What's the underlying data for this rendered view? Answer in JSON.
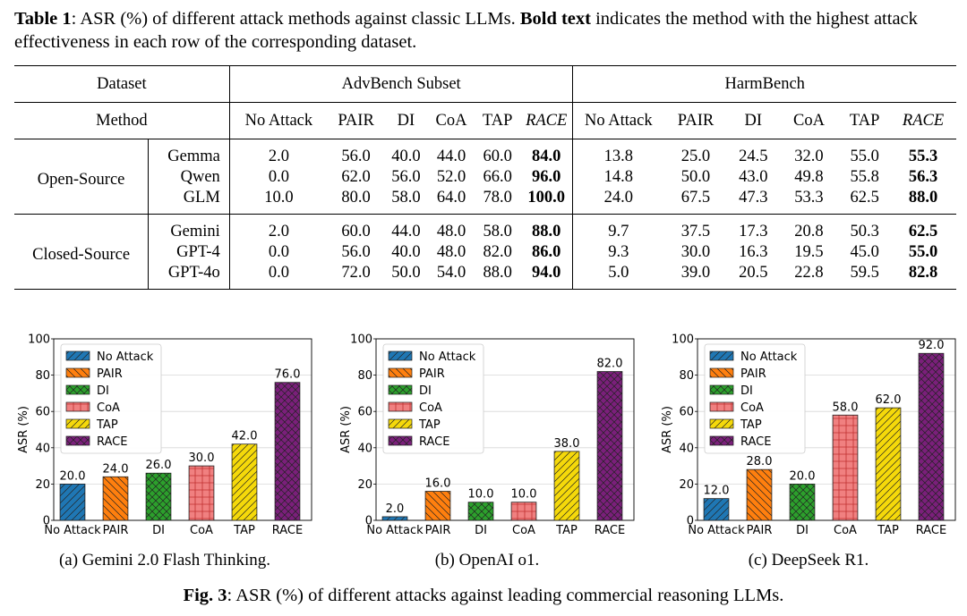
{
  "table": {
    "caption_label": "Table 1",
    "caption_text": ": ASR (%) of different attack methods against classic LLMs. ",
    "caption_bold": "Bold text",
    "caption_rest": " indicates the method with the highest attack effectiveness in each row of the corresponding dataset.",
    "dataset_label": "Dataset",
    "datasets": [
      "AdvBench Subset",
      "HarmBench"
    ],
    "method_label": "Method",
    "methods": [
      "No Attack",
      "PAIR",
      "DI",
      "CoA",
      "TAP",
      "RACE"
    ],
    "groups": [
      {
        "name": "Open-Source",
        "rows": [
          {
            "model": "Gemma",
            "advbench": [
              "2.0",
              "56.0",
              "40.0",
              "44.0",
              "60.0",
              "84.0"
            ],
            "harmbench": [
              "13.8",
              "25.0",
              "24.5",
              "32.0",
              "55.0",
              "55.3"
            ]
          },
          {
            "model": "Qwen",
            "advbench": [
              "0.0",
              "62.0",
              "56.0",
              "52.0",
              "66.0",
              "96.0"
            ],
            "harmbench": [
              "14.8",
              "50.0",
              "43.0",
              "49.8",
              "55.8",
              "56.3"
            ]
          },
          {
            "model": "GLM",
            "advbench": [
              "10.0",
              "80.0",
              "58.0",
              "64.0",
              "78.0",
              "100.0"
            ],
            "harmbench": [
              "24.0",
              "67.5",
              "47.3",
              "53.3",
              "62.5",
              "88.0"
            ]
          }
        ]
      },
      {
        "name": "Closed-Source",
        "rows": [
          {
            "model": "Gemini",
            "advbench": [
              "2.0",
              "60.0",
              "44.0",
              "48.0",
              "58.0",
              "88.0"
            ],
            "harmbench": [
              "9.7",
              "37.5",
              "17.3",
              "20.8",
              "50.3",
              "62.5"
            ]
          },
          {
            "model": "GPT-4",
            "advbench": [
              "0.0",
              "56.0",
              "40.0",
              "48.0",
              "82.0",
              "86.0"
            ],
            "harmbench": [
              "9.3",
              "30.0",
              "16.3",
              "19.5",
              "45.0",
              "55.0"
            ]
          },
          {
            "model": "GPT-4o",
            "advbench": [
              "0.0",
              "72.0",
              "50.0",
              "54.0",
              "88.0",
              "94.0"
            ],
            "harmbench": [
              "5.0",
              "39.0",
              "20.5",
              "22.8",
              "59.5",
              "82.8"
            ]
          }
        ]
      }
    ]
  },
  "chart_data": [
    {
      "type": "bar",
      "categories": [
        "No Attack",
        "PAIR",
        "DI",
        "CoA",
        "TAP",
        "RACE"
      ],
      "values": [
        20.0,
        24.0,
        26.0,
        30.0,
        42.0,
        76.0
      ],
      "title": "",
      "xlabel": "",
      "ylabel": "ASR (%)",
      "ylim": [
        0,
        100
      ],
      "yticks": [
        0,
        20,
        40,
        60,
        80,
        100
      ],
      "grid": true,
      "legend": "top-left",
      "caption": "(a) Gemini 2.0 Flash Thinking."
    },
    {
      "type": "bar",
      "categories": [
        "No Attack",
        "PAIR",
        "DI",
        "CoA",
        "TAP",
        "RACE"
      ],
      "values": [
        2.0,
        16.0,
        10.0,
        10.0,
        38.0,
        82.0
      ],
      "title": "",
      "xlabel": "",
      "ylabel": "ASR (%)",
      "ylim": [
        0,
        100
      ],
      "yticks": [
        0,
        20,
        40,
        60,
        80,
        100
      ],
      "grid": true,
      "legend": "top-left",
      "caption": "(b) OpenAI o1."
    },
    {
      "type": "bar",
      "categories": [
        "No Attack",
        "PAIR",
        "DI",
        "CoA",
        "TAP",
        "RACE"
      ],
      "values": [
        12.0,
        28.0,
        20.0,
        58.0,
        62.0,
        92.0
      ],
      "title": "",
      "xlabel": "",
      "ylabel": "ASR (%)",
      "ylim": [
        0,
        100
      ],
      "yticks": [
        0,
        20,
        40,
        60,
        80,
        100
      ],
      "grid": true,
      "legend": "top-left",
      "caption": "(c) DeepSeek R1."
    }
  ],
  "bar_colors": [
    "#1f77b4",
    "#ff7f0e",
    "#2ca02c",
    "#f08080",
    "#f5d90a",
    "#7b1f7b"
  ],
  "figure_caption_label": "Fig. 3",
  "figure_caption_text": ": ASR (%) of different attacks against leading commercial reasoning LLMs."
}
